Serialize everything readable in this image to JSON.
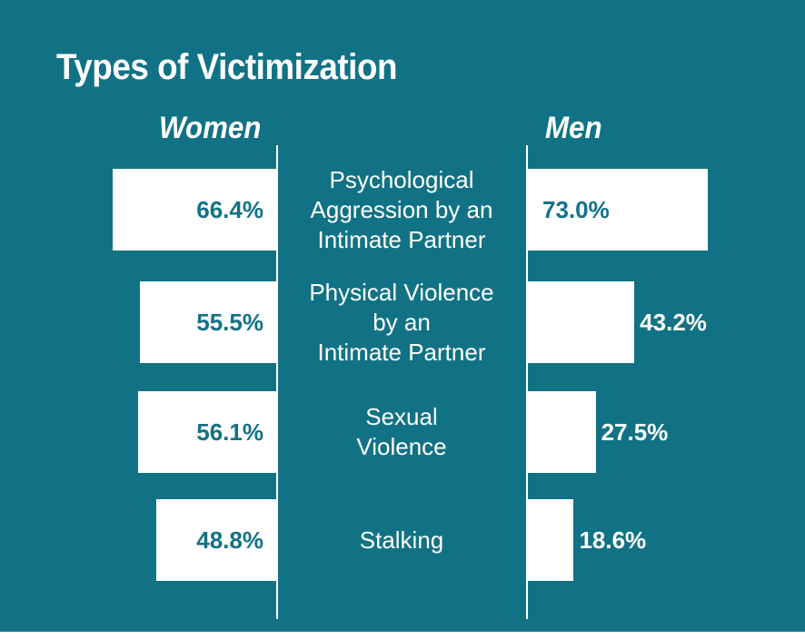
{
  "chart_data": {
    "type": "bar",
    "title": "Types of Victimization",
    "categories": [
      "Psychological Aggression by an Intimate Partner",
      "Physical Violence by an Intimate Partner",
      "Sexual Violence",
      "Stalking"
    ],
    "category_lines": [
      [
        "Psychological",
        "Aggression by an",
        "Intimate Partner"
      ],
      [
        "Physical Violence",
        "by an",
        "Intimate Partner"
      ],
      [
        "Sexual",
        "Violence"
      ],
      [
        "Stalking"
      ]
    ],
    "series": [
      {
        "name": "Women",
        "values": [
          66.4,
          55.5,
          56.1,
          48.8
        ],
        "labels": [
          "66.4%",
          "55.5%",
          "56.1%",
          "48.8%"
        ]
      },
      {
        "name": "Men",
        "values": [
          73.0,
          43.2,
          27.5,
          18.6
        ],
        "labels": [
          "73.0%",
          "43.2%",
          "27.5%",
          "18.6%"
        ]
      }
    ],
    "orientation": "horizontal-diverging",
    "grid": false,
    "legend": "none",
    "colors": {
      "background": "#127285",
      "bar": "#ffffff",
      "inside_text": "#127285",
      "outside_text": "#ffffff"
    }
  }
}
